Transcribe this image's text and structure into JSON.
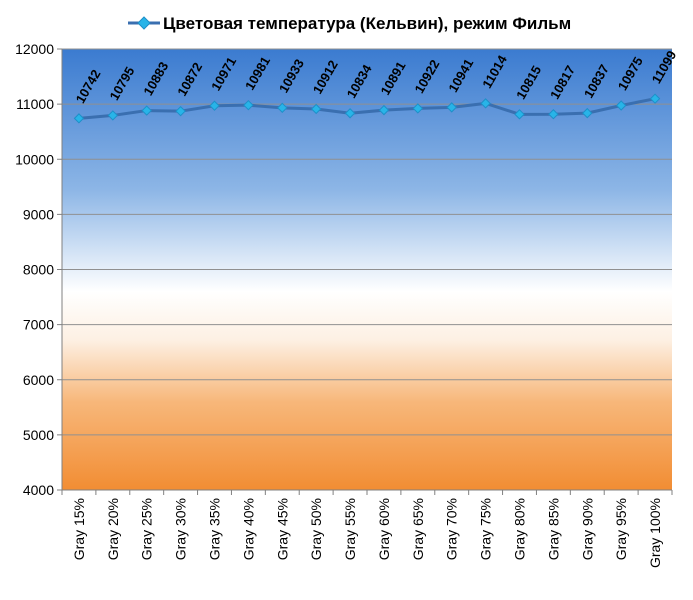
{
  "chart_data": {
    "type": "line",
    "legend_position": "top",
    "grid": true,
    "background": "vertical gradient: blue top, white middle, orange bottom",
    "ylim": [
      4000,
      12000
    ],
    "y_ticks": [
      "4000",
      "5000",
      "6000",
      "7000",
      "8000",
      "9000",
      "10000",
      "11000",
      "12000"
    ],
    "categories": [
      "Gray 15%",
      "Gray 20%",
      "Gray 25%",
      "Gray 30%",
      "Gray 35%",
      "Gray 40%",
      "Gray 45%",
      "Gray 50%",
      "Gray 55%",
      "Gray 60%",
      "Gray 65%",
      "Gray 70%",
      "Gray 75%",
      "Gray 80%",
      "Gray 85%",
      "Gray 90%",
      "Gray 95%",
      "Gray 100%"
    ],
    "series": [
      {
        "name": "Цветовая температура (Кельвин), режим Фильм",
        "color": "#3a6fb0",
        "marker_color": "#28b4e8",
        "values": [
          10742,
          10795,
          10883,
          10872,
          10971,
          10981,
          10933,
          10912,
          10834,
          10891,
          10922,
          10941,
          11014,
          10815,
          10817,
          10837,
          10975,
          11099
        ],
        "labels": [
          "10742",
          "10795",
          "10883",
          "10872",
          "10971",
          "10981",
          "10933",
          "10912",
          "10834",
          "10891",
          "10922",
          "10941",
          "11014",
          "10815",
          "10817",
          "10837",
          "10975",
          "11099"
        ]
      }
    ]
  },
  "colors": {
    "top": "#3d7fcf",
    "middle": "#ffffff",
    "bottom": "#f0913a",
    "grid": "#909090"
  }
}
